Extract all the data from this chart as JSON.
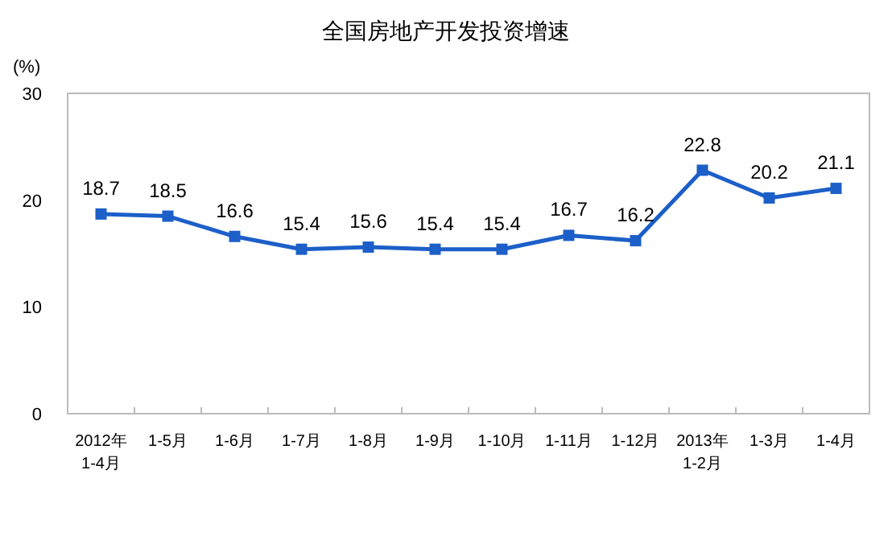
{
  "chart_data": {
    "type": "line",
    "title": "全国房地产开发投资增速",
    "ylabel": "(%)",
    "categories": [
      "2012年\n1-4月",
      "1-5月",
      "1-6月",
      "1-7月",
      "1-8月",
      "1-9月",
      "1-10月",
      "1-11月",
      "1-12月",
      "2013年\n1-2月",
      "1-3月",
      "1-4月"
    ],
    "series": [
      {
        "color": "#1c5fc8",
        "values": [
          18.7,
          18.5,
          16.6,
          15.4,
          15.6,
          15.4,
          15.4,
          16.7,
          16.2,
          22.8,
          20.2,
          21.1
        ]
      }
    ],
    "ylim": [
      0,
      30
    ],
    "yticks": [
      0,
      10,
      20,
      30
    ],
    "marker": "square",
    "data_labels": true,
    "grid": false
  }
}
